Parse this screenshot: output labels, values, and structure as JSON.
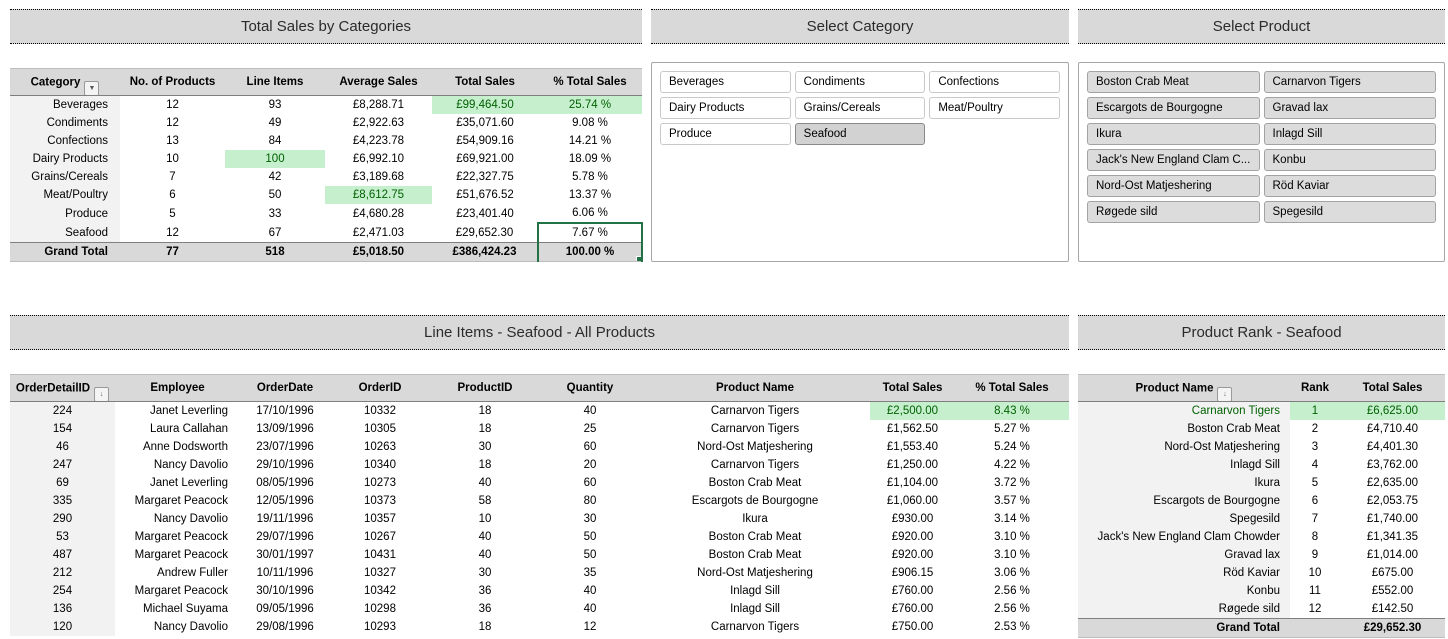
{
  "colors": {
    "title_bg": "#d9d9d9",
    "header_bg": "#d9d9d9",
    "grand_total_bg": "#d9d9d9",
    "first_column_bg": "#f2f2f2",
    "highlight_bg": "#c6efce",
    "highlight_text": "#006100",
    "selection_border": "#217346",
    "selected_cell_bg": "#b3b3b3",
    "slicer_selected_bg": "#d2d2d2",
    "slicer_active_bg": "#dcdcdc"
  },
  "category_summary": {
    "title": "Total Sales by Categories",
    "columns": [
      {
        "key": "category",
        "label": "Category",
        "icon": "filter-dropdown"
      },
      {
        "key": "products",
        "label": "No. of Products"
      },
      {
        "key": "line_items",
        "label": "Line Items"
      },
      {
        "key": "avg",
        "label": "Average Sales"
      },
      {
        "key": "total",
        "label": "Total Sales"
      },
      {
        "key": "pct",
        "label": "% Total Sales"
      }
    ],
    "rows": [
      {
        "category": "Beverages",
        "products": "12",
        "line_items": "93",
        "avg": "£8,288.71",
        "total": "£99,464.50",
        "pct": "25.74 %",
        "highlight": [
          "total",
          "pct"
        ]
      },
      {
        "category": "Condiments",
        "products": "12",
        "line_items": "49",
        "avg": "£2,922.63",
        "total": "£35,071.60",
        "pct": "9.08 %"
      },
      {
        "category": "Confections",
        "products": "13",
        "line_items": "84",
        "avg": "£4,223.78",
        "total": "£54,909.16",
        "pct": "14.21 %"
      },
      {
        "category": "Dairy Products",
        "products": "10",
        "line_items": "100",
        "avg": "£6,992.10",
        "total": "£69,921.00",
        "pct": "18.09 %",
        "highlight": [
          "line_items"
        ]
      },
      {
        "category": "Grains/Cereals",
        "products": "7",
        "line_items": "42",
        "avg": "£3,189.68",
        "total": "£22,327.75",
        "pct": "5.78 %"
      },
      {
        "category": "Meat/Poultry",
        "products": "6",
        "line_items": "50",
        "avg": "£8,612.75",
        "total": "£51,676.52",
        "pct": "13.37 %",
        "highlight": [
          "avg"
        ]
      },
      {
        "category": "Produce",
        "products": "5",
        "line_items": "33",
        "avg": "£4,680.28",
        "total": "£23,401.40",
        "pct": "6.06 %"
      },
      {
        "category": "Seafood",
        "products": "12",
        "line_items": "67",
        "avg": "£2,471.03",
        "total": "£29,652.30",
        "pct": "7.67 %",
        "sel_top": [
          "pct"
        ]
      }
    ],
    "grand_total": {
      "category": "Grand Total",
      "products": "77",
      "line_items": "518",
      "avg": "£5,018.50",
      "total": "£386,424.23",
      "pct": "100.00 %",
      "sel_bottom": [
        "pct"
      ]
    }
  },
  "category_slicer": {
    "title": "Select Category",
    "items": [
      {
        "label": "Beverages",
        "state": "normal"
      },
      {
        "label": "Condiments",
        "state": "normal"
      },
      {
        "label": "Confections",
        "state": "normal"
      },
      {
        "label": "Dairy Products",
        "state": "normal"
      },
      {
        "label": "Grains/Cereals",
        "state": "normal"
      },
      {
        "label": "Meat/Poultry",
        "state": "normal"
      },
      {
        "label": "Produce",
        "state": "normal"
      },
      {
        "label": "Seafood",
        "state": "selected"
      }
    ]
  },
  "product_slicer": {
    "title": "Select Product",
    "items": [
      {
        "label": "Boston Crab Meat",
        "state": "active"
      },
      {
        "label": "Carnarvon Tigers",
        "state": "active"
      },
      {
        "label": "Escargots de Bourgogne",
        "state": "active"
      },
      {
        "label": "Gravad lax",
        "state": "active"
      },
      {
        "label": "Ikura",
        "state": "active"
      },
      {
        "label": "Inlagd Sill",
        "state": "active"
      },
      {
        "label": "Jack's New England Clam C...",
        "state": "active"
      },
      {
        "label": "Konbu",
        "state": "active"
      },
      {
        "label": "Nord-Ost Matjeshering",
        "state": "active"
      },
      {
        "label": "Röd Kaviar",
        "state": "active"
      },
      {
        "label": "Røgede sild",
        "state": "active"
      },
      {
        "label": "Spegesild",
        "state": "active"
      }
    ]
  },
  "line_items": {
    "title": "Line Items - Seafood - All Products",
    "columns": [
      {
        "key": "order_detail_id",
        "label": "OrderDetailID",
        "icon": "sort-filter"
      },
      {
        "key": "employee",
        "label": "Employee"
      },
      {
        "key": "order_date",
        "label": "OrderDate"
      },
      {
        "key": "order_id",
        "label": "OrderID"
      },
      {
        "key": "product_id",
        "label": "ProductID"
      },
      {
        "key": "quantity",
        "label": "Quantity"
      },
      {
        "key": "product_name",
        "label": "Product Name"
      },
      {
        "key": "total",
        "label": "Total Sales"
      },
      {
        "key": "pct",
        "label": "% Total Sales"
      }
    ],
    "rows": [
      {
        "order_detail_id": "224",
        "employee": "Janet Leverling",
        "order_date": "17/10/1996",
        "order_id": "10332",
        "product_id": "18",
        "quantity": "40",
        "product_name": "Carnarvon Tigers",
        "total": "£2,500.00",
        "pct": "8.43 %",
        "highlight": [
          "total",
          "pct"
        ]
      },
      {
        "order_detail_id": "154",
        "employee": "Laura Callahan",
        "order_date": "13/09/1996",
        "order_id": "10305",
        "product_id": "18",
        "quantity": "25",
        "product_name": "Carnarvon Tigers",
        "total": "£1,562.50",
        "pct": "5.27 %"
      },
      {
        "order_detail_id": "46",
        "employee": "Anne Dodsworth",
        "order_date": "23/07/1996",
        "order_id": "10263",
        "product_id": "30",
        "quantity": "60",
        "product_name": "Nord-Ost Matjeshering",
        "total": "£1,553.40",
        "pct": "5.24 %"
      },
      {
        "order_detail_id": "247",
        "employee": "Nancy Davolio",
        "order_date": "29/10/1996",
        "order_id": "10340",
        "product_id": "18",
        "quantity": "20",
        "product_name": "Carnarvon Tigers",
        "total": "£1,250.00",
        "pct": "4.22 %"
      },
      {
        "order_detail_id": "69",
        "employee": "Janet Leverling",
        "order_date": "08/05/1996",
        "order_id": "10273",
        "product_id": "40",
        "quantity": "60",
        "product_name": "Boston Crab Meat",
        "total": "£1,104.00",
        "pct": "3.72 %"
      },
      {
        "order_detail_id": "335",
        "employee": "Margaret Peacock",
        "order_date": "12/05/1996",
        "order_id": "10373",
        "product_id": "58",
        "quantity": "80",
        "product_name": "Escargots de Bourgogne",
        "total": "£1,060.00",
        "pct": "3.57 %"
      },
      {
        "order_detail_id": "290",
        "employee": "Nancy Davolio",
        "order_date": "19/11/1996",
        "order_id": "10357",
        "product_id": "10",
        "quantity": "30",
        "product_name": "Ikura",
        "total": "£930.00",
        "pct": "3.14 %"
      },
      {
        "order_detail_id": "53",
        "employee": "Margaret Peacock",
        "order_date": "29/07/1996",
        "order_id": "10267",
        "product_id": "40",
        "quantity": "50",
        "product_name": "Boston Crab Meat",
        "total": "£920.00",
        "pct": "3.10 %"
      },
      {
        "order_detail_id": "487",
        "employee": "Margaret Peacock",
        "order_date": "30/01/1997",
        "order_id": "10431",
        "product_id": "40",
        "quantity": "50",
        "product_name": "Boston Crab Meat",
        "total": "£920.00",
        "pct": "3.10 %"
      },
      {
        "order_detail_id": "212",
        "employee": "Andrew Fuller",
        "order_date": "10/11/1996",
        "order_id": "10327",
        "product_id": "30",
        "quantity": "35",
        "product_name": "Nord-Ost Matjeshering",
        "total": "£906.15",
        "pct": "3.06 %"
      },
      {
        "order_detail_id": "254",
        "employee": "Margaret Peacock",
        "order_date": "30/10/1996",
        "order_id": "10342",
        "product_id": "36",
        "quantity": "40",
        "product_name": "Inlagd Sill",
        "total": "£760.00",
        "pct": "2.56 %"
      },
      {
        "order_detail_id": "136",
        "employee": "Michael Suyama",
        "order_date": "09/05/1996",
        "order_id": "10298",
        "product_id": "36",
        "quantity": "40",
        "product_name": "Inlagd Sill",
        "total": "£760.00",
        "pct": "2.56 %"
      },
      {
        "order_detail_id": "120",
        "employee": "Nancy Davolio",
        "order_date": "29/08/1996",
        "order_id": "10293",
        "product_id": "18",
        "quantity": "12",
        "product_name": "Carnarvon Tigers",
        "total": "£750.00",
        "pct": "2.53 %"
      }
    ]
  },
  "product_rank": {
    "title": "Product Rank - Seafood",
    "columns": [
      {
        "key": "product_name",
        "label": "Product Name",
        "icon": "sort-filter"
      },
      {
        "key": "rank",
        "label": "Rank"
      },
      {
        "key": "total",
        "label": "Total Sales"
      }
    ],
    "rows": [
      {
        "product_name": "Carnarvon Tigers",
        "rank": "1",
        "total": "£6,625.00",
        "highlight": [
          "product_name",
          "rank",
          "total"
        ]
      },
      {
        "product_name": "Boston Crab Meat",
        "rank": "2",
        "total": "£4,710.40"
      },
      {
        "product_name": "Nord-Ost Matjeshering",
        "rank": "3",
        "total": "£4,401.30"
      },
      {
        "product_name": "Inlagd Sill",
        "rank": "4",
        "total": "£3,762.00"
      },
      {
        "product_name": "Ikura",
        "rank": "5",
        "total": "£2,635.00"
      },
      {
        "product_name": "Escargots de Bourgogne",
        "rank": "6",
        "total": "£2,053.75"
      },
      {
        "product_name": "Spegesild",
        "rank": "7",
        "total": "£1,740.00"
      },
      {
        "product_name": "Jack's New England Clam Chowder",
        "rank": "8",
        "total": "£1,341.35"
      },
      {
        "product_name": "Gravad lax",
        "rank": "9",
        "total": "£1,014.00"
      },
      {
        "product_name": "Röd Kaviar",
        "rank": "10",
        "total": "£675.00"
      },
      {
        "product_name": "Konbu",
        "rank": "11",
        "total": "£552.00"
      },
      {
        "product_name": "Røgede sild",
        "rank": "12",
        "total": "£142.50"
      }
    ],
    "grand_total": {
      "product_name": "Grand Total",
      "rank": "",
      "total": "£29,652.30"
    }
  }
}
